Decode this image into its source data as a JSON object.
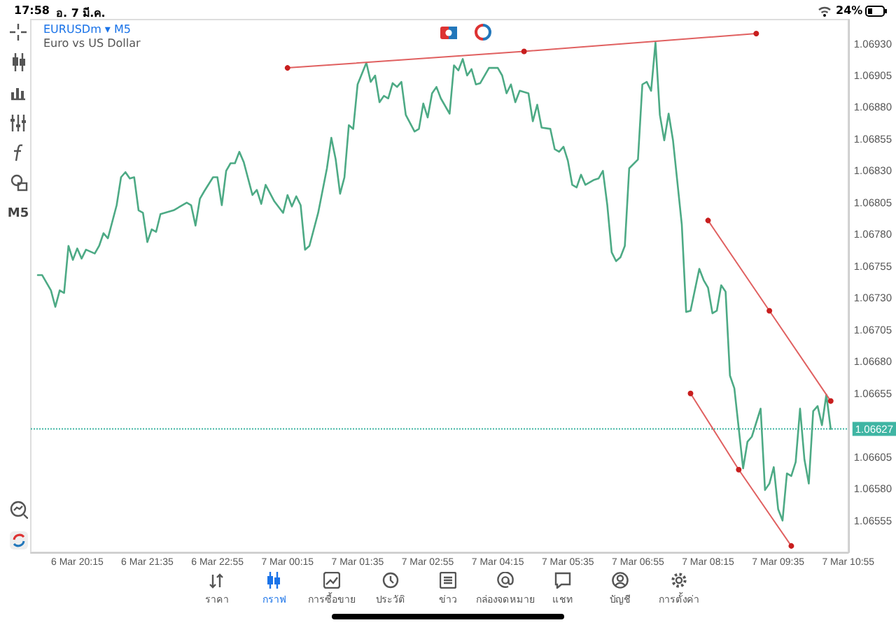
{
  "chart_data": {
    "type": "line",
    "title": "EURUSDm ▾ M5",
    "subtitle": "Euro vs US Dollar",
    "xlim": [
      "--03-06T19:22",
      "--03-07T10:55"
    ],
    "xticks": [
      {
        "value": "--03-06T20:15",
        "label": "6 Mar 20:15"
      },
      {
        "value": "--03-06T21:35",
        "label": "6 Mar 21:35"
      },
      {
        "value": "--03-06T22:55",
        "label": "6 Mar 22:55"
      },
      {
        "value": "--03-07T00:15",
        "label": "7 Mar 00:15"
      },
      {
        "value": "--03-07T01:35",
        "label": "7 Mar 01:35"
      },
      {
        "value": "--03-07T02:55",
        "label": "7 Mar 02:55"
      },
      {
        "value": "--03-07T04:15",
        "label": "7 Mar 04:15"
      },
      {
        "value": "--03-07T05:35",
        "label": "7 Mar 05:35"
      },
      {
        "value": "--03-07T06:55",
        "label": "7 Mar 06:55"
      },
      {
        "value": "--03-07T08:15",
        "label": "7 Mar 08:15"
      },
      {
        "value": "--03-07T09:35",
        "label": "7 Mar 09:35"
      },
      {
        "value": "--03-07T10:55",
        "label": "7 Mar 10:55"
      }
    ],
    "ylim": [
      1.0653,
      1.06949
    ],
    "yticks": [
      {
        "value": 1.06555,
        "label": "1.06555"
      },
      {
        "value": 1.0658,
        "label": "1.06580"
      },
      {
        "value": 1.06605,
        "label": "1.06605"
      },
      {
        "value": 1.06655,
        "label": "1.06655"
      },
      {
        "value": 1.0668,
        "label": "1.06680"
      },
      {
        "value": 1.06705,
        "label": "1.06705"
      },
      {
        "value": 1.0673,
        "label": "1.06730"
      },
      {
        "value": 1.06755,
        "label": "1.06755"
      },
      {
        "value": 1.0678,
        "label": "1.06780"
      },
      {
        "value": 1.06805,
        "label": "1.06805"
      },
      {
        "value": 1.0683,
        "label": "1.06830"
      },
      {
        "value": 1.06855,
        "label": "1.06855"
      },
      {
        "value": 1.0688,
        "label": "1.06880"
      },
      {
        "value": 1.06905,
        "label": "1.06905"
      },
      {
        "value": 1.0693,
        "label": "1.06930"
      }
    ],
    "series": [
      {
        "color": "#4daa85",
        "marker": "none",
        "x": [
          "--03-06T19:30",
          "--03-06T19:35",
          "--03-06T19:45",
          "--03-06T19:50",
          "--03-06T19:55",
          "--03-06T20:00",
          "--03-06T20:05",
          "--03-06T20:10",
          "--03-06T20:15",
          "--03-06T20:20",
          "--03-06T20:25",
          "--03-06T20:35",
          "--03-06T20:40",
          "--03-06T20:45",
          "--03-06T20:50",
          "--03-06T21:00",
          "--03-06T21:05",
          "--03-06T21:10",
          "--03-06T21:15",
          "--03-06T21:20",
          "--03-06T21:25",
          "--03-06T21:30",
          "--03-06T21:35",
          "--03-06T21:40",
          "--03-06T21:45",
          "--03-06T21:50",
          "--03-06T22:05",
          "--03-06T22:20",
          "--03-06T22:25",
          "--03-06T22:30",
          "--03-06T22:35",
          "--03-06T22:40",
          "--03-06T22:50",
          "--03-06T22:55",
          "--03-06T23:00",
          "--03-06T23:05",
          "--03-06T23:10",
          "--03-06T23:15",
          "--03-06T23:20",
          "--03-06T23:25",
          "--03-06T23:35",
          "--03-06T23:40",
          "--03-06T23:45",
          "--03-06T23:50",
          "--03-07T00:00",
          "--03-07T00:10",
          "--03-07T00:15",
          "--03-07T00:20",
          "--03-07T00:25",
          "--03-07T00:30",
          "--03-07T00:35",
          "--03-07T00:40",
          "--03-07T00:50",
          "--03-07T01:00",
          "--03-07T01:05",
          "--03-07T01:10",
          "--03-07T01:15",
          "--03-07T01:20",
          "--03-07T01:25",
          "--03-07T01:30",
          "--03-07T01:35",
          "--03-07T01:45",
          "--03-07T01:50",
          "--03-07T01:55",
          "--03-07T02:00",
          "--03-07T02:05",
          "--03-07T02:10",
          "--03-07T02:15",
          "--03-07T02:20",
          "--03-07T02:25",
          "--03-07T02:30",
          "--03-07T02:40",
          "--03-07T02:45",
          "--03-07T02:50",
          "--03-07T02:55",
          "--03-07T03:00",
          "--03-07T03:05",
          "--03-07T03:10",
          "--03-07T03:20",
          "--03-07T03:25",
          "--03-07T03:30",
          "--03-07T03:35",
          "--03-07T03:40",
          "--03-07T03:45",
          "--03-07T03:50",
          "--03-07T03:55",
          "--03-07T04:05",
          "--03-07T04:15",
          "--03-07T04:20",
          "--03-07T04:25",
          "--03-07T04:30",
          "--03-07T04:35",
          "--03-07T04:40",
          "--03-07T04:50",
          "--03-07T04:55",
          "--03-07T05:00",
          "--03-07T05:05",
          "--03-07T05:15",
          "--03-07T05:20",
          "--03-07T05:25",
          "--03-07T05:30",
          "--03-07T05:35",
          "--03-07T05:40",
          "--03-07T05:45",
          "--03-07T05:50",
          "--03-07T05:55",
          "--03-07T06:05",
          "--03-07T06:10",
          "--03-07T06:15",
          "--03-07T06:20",
          "--03-07T06:25",
          "--03-07T06:30",
          "--03-07T06:35",
          "--03-07T06:40",
          "--03-07T06:45",
          "--03-07T06:55",
          "--03-07T07:00",
          "--03-07T07:05",
          "--03-07T07:10",
          "--03-07T07:15",
          "--03-07T07:20",
          "--03-07T07:25",
          "--03-07T07:30",
          "--03-07T07:35",
          "--03-07T07:45",
          "--03-07T07:50",
          "--03-07T07:55",
          "--03-07T08:05",
          "--03-07T08:10",
          "--03-07T08:15",
          "--03-07T08:20",
          "--03-07T08:25",
          "--03-07T08:30",
          "--03-07T08:35",
          "--03-07T08:40",
          "--03-07T08:45",
          "--03-07T08:55",
          "--03-07T09:00",
          "--03-07T09:05",
          "--03-07T09:15",
          "--03-07T09:20",
          "--03-07T09:25",
          "--03-07T09:30",
          "--03-07T09:35",
          "--03-07T09:40",
          "--03-07T09:45",
          "--03-07T09:50",
          "--03-07T09:55",
          "--03-07T10:00",
          "--03-07T10:05",
          "--03-07T10:10",
          "--03-07T10:15",
          "--03-07T10:20",
          "--03-07T10:25",
          "--03-07T10:30",
          "--03-07T10:35"
        ],
        "values": [
          1.06748,
          1.06748,
          1.06736,
          1.06723,
          1.06736,
          1.06734,
          1.06771,
          1.0676,
          1.06769,
          1.06761,
          1.06768,
          1.06765,
          1.06771,
          1.06781,
          1.06777,
          1.06803,
          1.06825,
          1.06829,
          1.06824,
          1.06825,
          1.06799,
          1.06797,
          1.06774,
          1.06784,
          1.06782,
          1.06796,
          1.06799,
          1.06805,
          1.06803,
          1.06787,
          1.06808,
          1.06814,
          1.06825,
          1.06825,
          1.06803,
          1.0683,
          1.06836,
          1.06836,
          1.06845,
          1.06837,
          1.06811,
          1.06815,
          1.06804,
          1.06819,
          1.06806,
          1.06797,
          1.06811,
          1.06802,
          1.0681,
          1.06803,
          1.06768,
          1.06771,
          1.06797,
          1.06832,
          1.06856,
          1.06839,
          1.06812,
          1.06825,
          1.06866,
          1.06863,
          1.06898,
          1.06915,
          1.069,
          1.06905,
          1.06884,
          1.06889,
          1.06887,
          1.06899,
          1.06896,
          1.069,
          1.06874,
          1.06861,
          1.06863,
          1.06883,
          1.06872,
          1.06891,
          1.06896,
          1.06887,
          1.06875,
          1.06913,
          1.06909,
          1.06918,
          1.06905,
          1.0691,
          1.06898,
          1.06899,
          1.06911,
          1.06911,
          1.06905,
          1.06891,
          1.06898,
          1.06884,
          1.06893,
          1.06891,
          1.06869,
          1.06882,
          1.06864,
          1.06863,
          1.06847,
          1.06845,
          1.06849,
          1.06838,
          1.06819,
          1.06817,
          1.06827,
          1.06819,
          1.06823,
          1.06824,
          1.0683,
          1.06803,
          1.06766,
          1.06759,
          1.06762,
          1.06771,
          1.06832,
          1.06839,
          1.06898,
          1.069,
          1.06893,
          1.06931,
          1.06874,
          1.06854,
          1.06875,
          1.06854,
          1.06788,
          1.06719,
          1.0672,
          1.06753,
          1.06744,
          1.06738,
          1.06718,
          1.0672,
          1.0674,
          1.06735,
          1.06669,
          1.06659,
          1.06596,
          1.06617,
          1.06621,
          1.06643,
          1.06579,
          1.06584,
          1.06597,
          1.06564,
          1.06555,
          1.06592,
          1.0659,
          1.06601,
          1.06643,
          1.06603,
          1.06584,
          1.06641,
          1.06645,
          1.0663,
          1.06654,
          1.06627
        ]
      },
      {
        "color": "#e06060",
        "marker": "circle",
        "x": [
          "--03-07T00:15",
          "--03-07T04:45",
          "--03-07T09:10"
        ],
        "values": [
          1.06911,
          1.06924,
          1.06938
        ]
      },
      {
        "color": "#e06060",
        "marker": "circle",
        "x": [
          "--03-07T08:15",
          "--03-07T09:25",
          "--03-07T10:35"
        ],
        "values": [
          1.06791,
          1.0672,
          1.06649
        ]
      },
      {
        "color": "#e06060",
        "marker": "circle",
        "x": [
          "--03-07T07:55",
          "--03-07T08:50",
          "--03-07T09:50"
        ],
        "values": [
          1.06655,
          1.06595,
          1.06535
        ]
      }
    ],
    "ref_lines": [
      {
        "axis": "y",
        "value": 1.06627,
        "label": "1.06627",
        "color": "#3fb5a3",
        "line_style": "dotted"
      }
    ],
    "annotations": [
      "17:58",
      "อ. 7 มี.ค.",
      "24%",
      "M5",
      "ราคา",
      "กราฟ",
      "การซื้อขาย",
      "ประวัติ",
      "ข่าว",
      "กล่องจดหมาย",
      "แชท",
      "บัญชี",
      "การตั้งค่า"
    ]
  }
}
